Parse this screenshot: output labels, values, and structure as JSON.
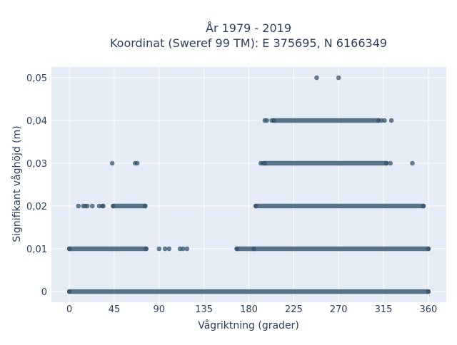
{
  "chart_data": {
    "type": "scatter",
    "title_line1": "År 1979 - 2019",
    "title_line2": "Koordinat (Sweref 99 TM): E 375695, N 6166349",
    "xlabel": "Vågriktning (grader)",
    "ylabel": "Signifikant våghöjd (m)",
    "xlim": [
      -18,
      378
    ],
    "ylim": [
      -0.0025,
      0.0525
    ],
    "xticks": [
      0,
      45,
      90,
      135,
      180,
      225,
      270,
      315,
      360
    ],
    "xtick_labels": [
      "0",
      "45",
      "90",
      "135",
      "180",
      "225",
      "270",
      "315",
      "360"
    ],
    "yticks": [
      0,
      0.01,
      0.02,
      0.03,
      0.04,
      0.05
    ],
    "ytick_labels": [
      "0",
      "0,01",
      "0,02",
      "0,03",
      "0,04",
      "0,05"
    ],
    "grid": true,
    "marker_color": "#34536c",
    "plot_background": "#e5ecf6",
    "series": [
      {
        "ranges": [
          {
            "y": 0,
            "x_from": 0,
            "x_to": 360
          },
          {
            "y": 0.01,
            "x_from": 0,
            "x_to": 77
          },
          {
            "y": 0.01,
            "x_from": 168,
            "x_to": 360
          },
          {
            "y": 0.02,
            "x_from": 44,
            "x_to": 76
          },
          {
            "y": 0.02,
            "x_from": 187,
            "x_to": 355
          },
          {
            "y": 0.03,
            "x_from": 196,
            "x_to": 318
          },
          {
            "y": 0.04,
            "x_from": 205,
            "x_to": 310
          }
        ],
        "points": [
          {
            "x": 90,
            "y": 0.01
          },
          {
            "x": 96,
            "y": 0.01
          },
          {
            "x": 100,
            "y": 0.01
          },
          {
            "x": 111,
            "y": 0.01
          },
          {
            "x": 114,
            "y": 0.01
          },
          {
            "x": 118,
            "y": 0.01
          },
          {
            "x": 9,
            "y": 0.02
          },
          {
            "x": 14,
            "y": 0.02
          },
          {
            "x": 16,
            "y": 0.02
          },
          {
            "x": 18,
            "y": 0.02
          },
          {
            "x": 23,
            "y": 0.02
          },
          {
            "x": 30,
            "y": 0.02
          },
          {
            "x": 33,
            "y": 0.02
          },
          {
            "x": 34,
            "y": 0.02
          },
          {
            "x": 185,
            "y": 0.01
          },
          {
            "x": 43,
            "y": 0.03
          },
          {
            "x": 66,
            "y": 0.03
          },
          {
            "x": 68,
            "y": 0.03
          },
          {
            "x": 192,
            "y": 0.03
          },
          {
            "x": 194,
            "y": 0.03
          },
          {
            "x": 322,
            "y": 0.03
          },
          {
            "x": 344,
            "y": 0.03
          },
          {
            "x": 196,
            "y": 0.04
          },
          {
            "x": 198,
            "y": 0.04
          },
          {
            "x": 203,
            "y": 0.04
          },
          {
            "x": 313,
            "y": 0.04
          },
          {
            "x": 316,
            "y": 0.04
          },
          {
            "x": 323,
            "y": 0.04
          },
          {
            "x": 248,
            "y": 0.05
          },
          {
            "x": 270,
            "y": 0.05
          }
        ]
      }
    ]
  }
}
